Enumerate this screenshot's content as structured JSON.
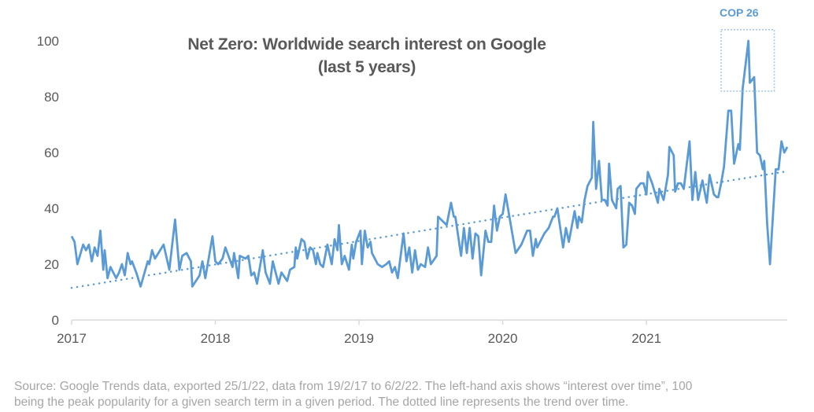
{
  "chart_data": {
    "type": "line",
    "title": "Net Zero: Worldwide search interest on Google",
    "subtitle": "(last 5 years)",
    "xlabel": "",
    "ylabel": "",
    "xlim": [
      2017,
      2021.98
    ],
    "ylim": [
      0,
      100
    ],
    "x_ticks": [
      "2017",
      "2018",
      "2019",
      "2020",
      "2021"
    ],
    "y_ticks": [
      0,
      20,
      40,
      60,
      80,
      100
    ],
    "grid": false,
    "series_color": "#5b9bd5",
    "trend_color": "#5b9bd5",
    "series": [
      {
        "points": [
          [
            2017.0,
            30
          ],
          [
            2017.02,
            28
          ],
          [
            2017.04,
            20
          ],
          [
            2017.08,
            27
          ],
          [
            2017.1,
            25
          ],
          [
            2017.12,
            27
          ],
          [
            2017.14,
            21
          ],
          [
            2017.16,
            26
          ],
          [
            2017.18,
            23
          ],
          [
            2017.2,
            32
          ],
          [
            2017.22,
            18
          ],
          [
            2017.23,
            25
          ],
          [
            2017.25,
            15
          ],
          [
            2017.27,
            19
          ],
          [
            2017.28,
            18
          ],
          [
            2017.31,
            15
          ],
          [
            2017.33,
            17
          ],
          [
            2017.35,
            20
          ],
          [
            2017.37,
            16
          ],
          [
            2017.39,
            24
          ],
          [
            2017.41,
            20
          ],
          [
            2017.42,
            21
          ],
          [
            2017.45,
            17
          ],
          [
            2017.48,
            12
          ],
          [
            2017.53,
            21
          ],
          [
            2017.54,
            20
          ],
          [
            2017.56,
            25
          ],
          [
            2017.58,
            22
          ],
          [
            2017.64,
            27
          ],
          [
            2017.68,
            18
          ],
          [
            2017.72,
            36
          ],
          [
            2017.75,
            18
          ],
          [
            2017.77,
            23
          ],
          [
            2017.8,
            24
          ],
          [
            2017.83,
            21
          ],
          [
            2017.84,
            12
          ],
          [
            2017.89,
            16
          ],
          [
            2017.91,
            21
          ],
          [
            2017.93,
            15
          ],
          [
            2017.98,
            30
          ],
          [
            2018.0,
            21
          ],
          [
            2018.02,
            20
          ],
          [
            2018.05,
            22
          ],
          [
            2018.07,
            26
          ],
          [
            2018.12,
            19
          ],
          [
            2018.13,
            24
          ],
          [
            2018.16,
            15
          ],
          [
            2018.17,
            23
          ],
          [
            2018.21,
            22
          ],
          [
            2018.23,
            23
          ],
          [
            2018.25,
            16
          ],
          [
            2018.27,
            17
          ],
          [
            2018.29,
            13
          ],
          [
            2018.33,
            25
          ],
          [
            2018.35,
            17
          ],
          [
            2018.38,
            13
          ],
          [
            2018.4,
            21
          ],
          [
            2018.44,
            13
          ],
          [
            2018.46,
            17
          ],
          [
            2018.5,
            14
          ],
          [
            2018.52,
            18
          ],
          [
            2018.55,
            19
          ],
          [
            2018.56,
            26
          ],
          [
            2018.57,
            22
          ],
          [
            2018.6,
            29
          ],
          [
            2018.62,
            28
          ],
          [
            2018.64,
            22
          ],
          [
            2018.66,
            26
          ],
          [
            2018.68,
            25
          ],
          [
            2018.7,
            20
          ],
          [
            2018.71,
            24
          ],
          [
            2018.73,
            20
          ],
          [
            2018.75,
            19
          ],
          [
            2018.78,
            27
          ],
          [
            2018.81,
            20
          ],
          [
            2018.83,
            29
          ],
          [
            2018.85,
            25
          ],
          [
            2018.86,
            34
          ],
          [
            2018.88,
            20
          ],
          [
            2018.9,
            23
          ],
          [
            2018.93,
            18
          ],
          [
            2018.95,
            27
          ],
          [
            2018.96,
            22
          ],
          [
            2018.98,
            28
          ],
          [
            2019.01,
            32
          ],
          [
            2019.02,
            20
          ],
          [
            2019.04,
            32
          ],
          [
            2019.06,
            26
          ],
          [
            2019.08,
            28
          ],
          [
            2019.09,
            24
          ],
          [
            2019.13,
            20
          ],
          [
            2019.16,
            19
          ],
          [
            2019.19,
            20
          ],
          [
            2019.21,
            21
          ],
          [
            2019.23,
            17
          ],
          [
            2019.25,
            19
          ],
          [
            2019.27,
            15
          ],
          [
            2019.31,
            31
          ],
          [
            2019.33,
            21
          ],
          [
            2019.35,
            26
          ],
          [
            2019.37,
            17
          ],
          [
            2019.39,
            25
          ],
          [
            2019.41,
            18
          ],
          [
            2019.43,
            20
          ],
          [
            2019.46,
            19
          ],
          [
            2019.48,
            26
          ],
          [
            2019.5,
            20
          ],
          [
            2019.54,
            23
          ],
          [
            2019.55,
            37
          ],
          [
            2019.61,
            34
          ],
          [
            2019.64,
            42
          ],
          [
            2019.66,
            37
          ],
          [
            2019.67,
            37
          ],
          [
            2019.71,
            23
          ],
          [
            2019.73,
            33
          ],
          [
            2019.75,
            24
          ],
          [
            2019.77,
            33
          ],
          [
            2019.79,
            22
          ],
          [
            2019.81,
            31
          ],
          [
            2019.83,
            30
          ],
          [
            2019.85,
            16
          ],
          [
            2019.88,
            32
          ],
          [
            2019.9,
            28
          ],
          [
            2019.92,
            28
          ],
          [
            2019.94,
            41
          ],
          [
            2019.96,
            32
          ],
          [
            2019.98,
            37
          ],
          [
            2020.0,
            38
          ],
          [
            2020.02,
            45
          ],
          [
            2020.09,
            24
          ],
          [
            2020.13,
            27
          ],
          [
            2020.17,
            32
          ],
          [
            2020.19,
            32
          ],
          [
            2020.21,
            23
          ],
          [
            2020.23,
            29
          ],
          [
            2020.24,
            26
          ],
          [
            2020.29,
            31
          ],
          [
            2020.32,
            33
          ],
          [
            2020.35,
            37
          ],
          [
            2020.36,
            37
          ],
          [
            2020.38,
            40
          ],
          [
            2020.42,
            26
          ],
          [
            2020.44,
            33
          ],
          [
            2020.46,
            28
          ],
          [
            2020.5,
            39
          ],
          [
            2020.52,
            33
          ],
          [
            2020.53,
            37
          ],
          [
            2020.55,
            35
          ],
          [
            2020.57,
            43
          ],
          [
            2020.59,
            48
          ],
          [
            2020.62,
            51
          ],
          [
            2020.63,
            71
          ],
          [
            2020.65,
            47
          ],
          [
            2020.67,
            57
          ],
          [
            2020.69,
            43
          ],
          [
            2020.71,
            43
          ],
          [
            2020.73,
            41
          ],
          [
            2020.74,
            56
          ],
          [
            2020.76,
            43
          ],
          [
            2020.79,
            40
          ],
          [
            2020.8,
            47
          ],
          [
            2020.82,
            48
          ],
          [
            2020.84,
            26
          ],
          [
            2020.86,
            27
          ],
          [
            2020.88,
            42
          ],
          [
            2020.9,
            41
          ],
          [
            2020.92,
            38
          ],
          [
            2020.93,
            47
          ],
          [
            2020.96,
            49
          ],
          [
            2020.98,
            49
          ],
          [
            2021.0,
            45
          ],
          [
            2021.01,
            53
          ],
          [
            2021.04,
            49
          ],
          [
            2021.08,
            42
          ],
          [
            2021.09,
            47
          ],
          [
            2021.12,
            43
          ],
          [
            2021.15,
            52
          ],
          [
            2021.16,
            62
          ],
          [
            2021.19,
            59
          ],
          [
            2021.2,
            46
          ],
          [
            2021.22,
            49
          ],
          [
            2021.24,
            49
          ],
          [
            2021.26,
            47
          ],
          [
            2021.3,
            64
          ],
          [
            2021.32,
            43
          ],
          [
            2021.34,
            53
          ],
          [
            2021.36,
            43
          ],
          [
            2021.39,
            50
          ],
          [
            2021.42,
            42
          ],
          [
            2021.44,
            52
          ],
          [
            2021.47,
            45
          ],
          [
            2021.49,
            44
          ],
          [
            2021.5,
            44
          ],
          [
            2021.52,
            49
          ],
          [
            2021.54,
            55
          ],
          [
            2021.57,
            75
          ],
          [
            2021.59,
            75
          ],
          [
            2021.61,
            56
          ],
          [
            2021.64,
            63
          ],
          [
            2021.65,
            61
          ],
          [
            2021.67,
            83
          ],
          [
            2021.71,
            100
          ],
          [
            2021.72,
            85
          ],
          [
            2021.75,
            87
          ],
          [
            2021.77,
            60
          ],
          [
            2021.79,
            59
          ],
          [
            2021.81,
            54
          ],
          [
            2021.82,
            57
          ],
          [
            2021.84,
            35
          ],
          [
            2021.86,
            20
          ],
          [
            2021.9,
            54
          ],
          [
            2021.92,
            54
          ],
          [
            2021.94,
            64
          ],
          [
            2021.96,
            60
          ],
          [
            2021.98,
            62
          ]
        ]
      }
    ],
    "trendline": {
      "style": "dotted",
      "points": [
        [
          2017.0,
          11.5
        ],
        [
          2021.98,
          53.3
        ]
      ]
    },
    "annotation": {
      "label": "COP 26",
      "x_range": [
        2021.52,
        2021.89
      ],
      "y_range": [
        82,
        104
      ]
    }
  },
  "source": {
    "line1": "Source: Google Trends data, exported 25/1/22, data from 19/2/17 to 6/2/22. The left-hand axis shows “interest over time”, 100",
    "line2": "being the peak popularity for a given search term in a given period. The dotted line represents the trend over time."
  }
}
